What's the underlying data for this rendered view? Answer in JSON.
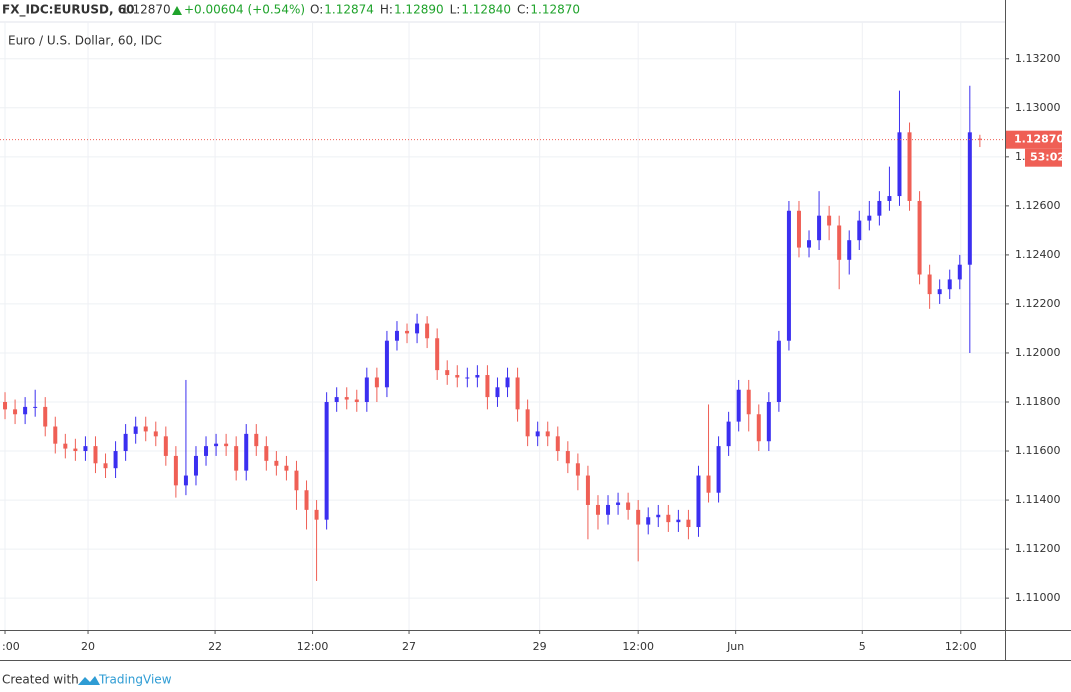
{
  "chart_data": {
    "type": "candlestick",
    "title": "FX_IDC:EURUSD, 60",
    "header_price": "1.12870",
    "header_change": "+0.00604 (+0.54%)",
    "header_ohlc": [
      {
        "name": "O:",
        "label": "1.12874"
      },
      {
        "name": "H:",
        "label": "1.12890"
      },
      {
        "name": "L:",
        "label": "1.12840"
      },
      {
        "name": "C:",
        "label": "1.12870"
      }
    ],
    "subtitle": "Euro / U.S. Dollar, 60, IDC",
    "footer": "Created with",
    "brand": "TradingView",
    "up_color": "#3b2ff0",
    "down_color": "#ef5f55",
    "grid": true,
    "xlim": [
      -0.5,
      99.5
    ],
    "xticks": [
      {
        "value": 0,
        "label": ":00"
      },
      {
        "value": 8.26,
        "label": "20"
      },
      {
        "value": 20.9,
        "label": "22"
      },
      {
        "value": 30.6,
        "label": "12:00"
      },
      {
        "value": 40.2,
        "label": "27"
      },
      {
        "value": 53.2,
        "label": "29"
      },
      {
        "value": 63.0,
        "label": "12:00"
      },
      {
        "value": 72.7,
        "label": "Jun"
      },
      {
        "value": 85.3,
        "label": "5"
      },
      {
        "value": 95.1,
        "label": "12:00"
      }
    ],
    "ylim": [
      1.1087,
      1.1335
    ],
    "yticks": [
      {
        "value": 1.11,
        "label": "1.11000"
      },
      {
        "value": 1.112,
        "label": "1.11200"
      },
      {
        "value": 1.114,
        "label": "1.11400"
      },
      {
        "value": 1.116,
        "label": "1.11600"
      },
      {
        "value": 1.118,
        "label": "1.11800"
      },
      {
        "value": 1.12,
        "label": "1.12000"
      },
      {
        "value": 1.122,
        "label": "1.12200"
      },
      {
        "value": 1.124,
        "label": "1.12400"
      },
      {
        "value": 1.126,
        "label": "1.12600"
      },
      {
        "value": 1.128,
        "label": "1.12800"
      },
      {
        "value": 1.13,
        "label": "1.13000"
      },
      {
        "value": 1.132,
        "label": "1.13200"
      }
    ],
    "last_price": {
      "value": 1.1287,
      "label": "1.12870"
    },
    "countdown": "53:02",
    "open": [
      1.118,
      1.1177,
      1.1175,
      1.1178,
      1.1178,
      1.117,
      1.1163,
      1.1161,
      1.116,
      1.1162,
      1.1155,
      1.1153,
      1.116,
      1.1167,
      1.117,
      1.1168,
      1.1166,
      1.1158,
      1.1146,
      1.115,
      1.1158,
      1.1162,
      1.1163,
      1.1162,
      1.1152,
      1.1167,
      1.1162,
      1.1156,
      1.1154,
      1.1152,
      1.1144,
      1.1136,
      1.1132,
      1.118,
      1.1182,
      1.1181,
      1.118,
      1.119,
      1.1186,
      1.1205,
      1.1209,
      1.1208,
      1.1212,
      1.1206,
      1.1193,
      1.1191,
      1.119,
      1.119,
      1.1191,
      1.1182,
      1.1186,
      1.119,
      1.1177,
      1.1166,
      1.1168,
      1.1166,
      1.116,
      1.1155,
      1.115,
      1.1138,
      1.1134,
      1.1138,
      1.1139,
      1.1136,
      1.113,
      1.1133,
      1.1134,
      1.1131,
      1.1132,
      1.1129,
      1.115,
      1.1143,
      1.1162,
      1.1172,
      1.1185,
      1.1175,
      1.1164,
      1.118,
      1.1205,
      1.1258,
      1.1243,
      1.1246,
      1.1256,
      1.1252,
      1.1238,
      1.1246,
      1.1254,
      1.1256,
      1.1262,
      1.1264,
      1.129,
      1.1262,
      1.1232,
      1.1224,
      1.1226,
      1.123,
      1.1236,
      1.12874
    ],
    "high": [
      1.1184,
      1.1181,
      1.1182,
      1.1185,
      1.1182,
      1.1174,
      1.1167,
      1.1165,
      1.1166,
      1.1166,
      1.1159,
      1.1164,
      1.1171,
      1.1174,
      1.1174,
      1.1172,
      1.117,
      1.1162,
      1.1189,
      1.1162,
      1.1166,
      1.1167,
      1.1167,
      1.1166,
      1.1171,
      1.1171,
      1.1166,
      1.116,
      1.1158,
      1.1156,
      1.1148,
      1.114,
      1.1184,
      1.1186,
      1.1186,
      1.1185,
      1.1194,
      1.1194,
      1.1209,
      1.1213,
      1.1212,
      1.1216,
      1.1215,
      1.121,
      1.1197,
      1.1195,
      1.1194,
      1.1195,
      1.1195,
      1.119,
      1.1194,
      1.1194,
      1.1181,
      1.1172,
      1.1172,
      1.117,
      1.1164,
      1.1159,
      1.1154,
      1.1142,
      1.1142,
      1.1143,
      1.1143,
      1.114,
      1.1137,
      1.1138,
      1.1138,
      1.1136,
      1.1136,
      1.1154,
      1.1179,
      1.1166,
      1.1176,
      1.1189,
      1.1189,
      1.1179,
      1.1184,
      1.1209,
      1.1262,
      1.1262,
      1.125,
      1.1266,
      1.126,
      1.1256,
      1.125,
      1.1258,
      1.1262,
      1.1266,
      1.1276,
      1.1307,
      1.1294,
      1.1266,
      1.1236,
      1.123,
      1.1234,
      1.124,
      1.1309,
      1.1289
    ],
    "low": [
      1.1173,
      1.1171,
      1.1171,
      1.1174,
      1.1166,
      1.1159,
      1.1157,
      1.1156,
      1.1156,
      1.1151,
      1.1149,
      1.1149,
      1.1156,
      1.1163,
      1.1164,
      1.1162,
      1.1154,
      1.1141,
      1.1142,
      1.1146,
      1.1154,
      1.1158,
      1.1158,
      1.1148,
      1.1148,
      1.1158,
      1.1152,
      1.115,
      1.1148,
      1.1136,
      1.1128,
      1.1107,
      1.1128,
      1.1176,
      1.1177,
      1.1176,
      1.1176,
      1.118,
      1.1182,
      1.1201,
      1.1204,
      1.1204,
      1.1202,
      1.1189,
      1.1187,
      1.1186,
      1.1186,
      1.1186,
      1.1177,
      1.1178,
      1.1182,
      1.1172,
      1.1162,
      1.1162,
      1.1162,
      1.1156,
      1.1151,
      1.1144,
      1.1124,
      1.1128,
      1.113,
      1.1134,
      1.1132,
      1.1115,
      1.1126,
      1.1129,
      1.1127,
      1.1127,
      1.1124,
      1.1125,
      1.1139,
      1.1139,
      1.1158,
      1.1168,
      1.1168,
      1.116,
      1.116,
      1.1176,
      1.1201,
      1.1239,
      1.1239,
      1.1242,
      1.1246,
      1.1226,
      1.1232,
      1.1242,
      1.125,
      1.1252,
      1.1258,
      1.126,
      1.1258,
      1.1228,
      1.1218,
      1.122,
      1.1222,
      1.1226,
      1.12,
      1.1284
    ],
    "close": [
      1.1177,
      1.1175,
      1.1178,
      1.1178,
      1.117,
      1.1163,
      1.1161,
      1.116,
      1.1162,
      1.1155,
      1.1153,
      1.116,
      1.1167,
      1.117,
      1.1168,
      1.1166,
      1.1158,
      1.1146,
      1.115,
      1.1158,
      1.1162,
      1.1163,
      1.1162,
      1.1152,
      1.1167,
      1.1162,
      1.1156,
      1.1154,
      1.1152,
      1.1144,
      1.1136,
      1.1132,
      1.118,
      1.1182,
      1.1181,
      1.118,
      1.119,
      1.1186,
      1.1205,
      1.1209,
      1.1208,
      1.1212,
      1.1206,
      1.1193,
      1.1191,
      1.119,
      1.119,
      1.1191,
      1.1182,
      1.1186,
      1.119,
      1.1177,
      1.1166,
      1.1168,
      1.1166,
      1.116,
      1.1155,
      1.115,
      1.1138,
      1.1134,
      1.1138,
      1.1139,
      1.1136,
      1.113,
      1.1133,
      1.1134,
      1.1131,
      1.1132,
      1.1129,
      1.115,
      1.1143,
      1.1162,
      1.1172,
      1.1185,
      1.1175,
      1.1164,
      1.118,
      1.1205,
      1.1258,
      1.1243,
      1.1246,
      1.1256,
      1.1252,
      1.1238,
      1.1246,
      1.1254,
      1.1256,
      1.1262,
      1.1264,
      1.129,
      1.1262,
      1.1232,
      1.1224,
      1.1226,
      1.123,
      1.1236,
      1.129,
      1.1287
    ]
  }
}
